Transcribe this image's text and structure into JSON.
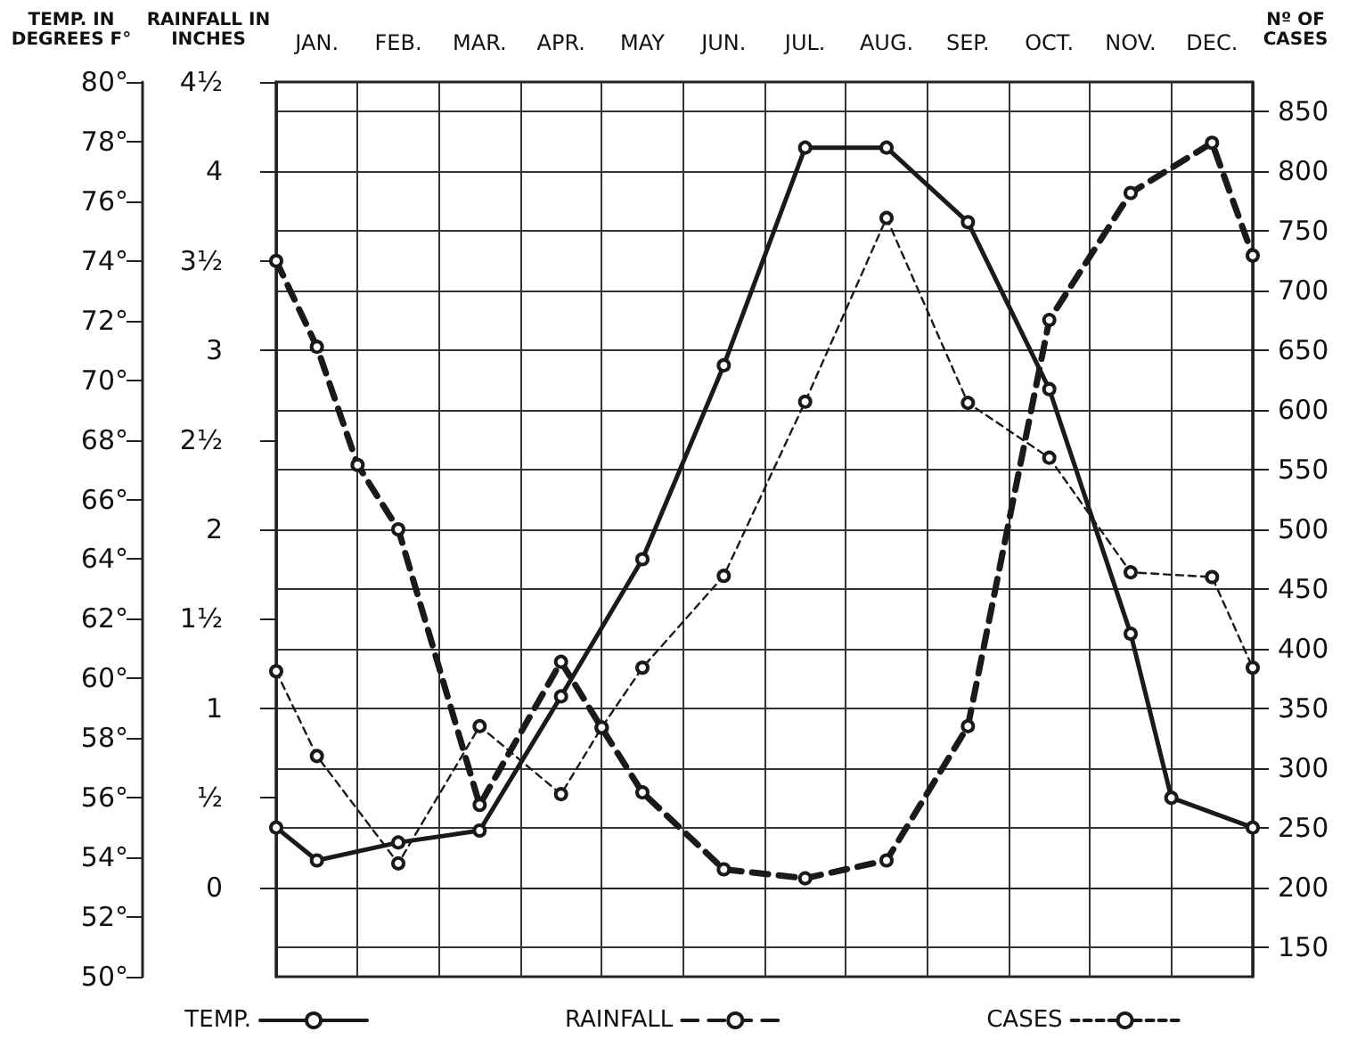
{
  "chart_data": {
    "type": "line",
    "ylabel": "TEMP. IN DEGREES F°",
    "y2label": "RAINFALL IN INCHES",
    "y3label": "Nº OF CASES",
    "categories": [
      null,
      "JAN.",
      null,
      "FEB.",
      null,
      "MAR.",
      null,
      "APR.",
      null,
      "MAY",
      null,
      "JUN.",
      null,
      "JUL.",
      null,
      "AUG.",
      null,
      "SEP.",
      null,
      "OCT.",
      null,
      "NOV.",
      null,
      "DEC.",
      null
    ],
    "series": [
      {
        "name": "TEMP.",
        "color": "#1a1a1a",
        "axis": "y",
        "line_style": "solid",
        "values": [
          55,
          53.9,
          null,
          54.5,
          null,
          54.9,
          null,
          59.4,
          null,
          64,
          null,
          70.5,
          null,
          77.8,
          null,
          77.8,
          null,
          75.3,
          null,
          69.7,
          null,
          61.5,
          56,
          null,
          55
        ]
      },
      {
        "name": "RAINFALL",
        "color": "#1a1a1a",
        "axis": "y2",
        "line_style": "dashed",
        "values": [
          3.5,
          3.02,
          2.36,
          2,
          null,
          0.46,
          null,
          1.26,
          0.89,
          0.53,
          null,
          0.1,
          null,
          0.05,
          null,
          0.15,
          null,
          0.9,
          null,
          3.17,
          null,
          3.88,
          null,
          4.16,
          3.53
        ]
      },
      {
        "name": "CASES",
        "color": "#1a1a1a",
        "axis": "y3",
        "line_style": "dotted",
        "values": [
          381,
          310,
          null,
          220,
          null,
          335,
          null,
          278,
          334,
          384,
          null,
          461,
          null,
          607,
          null,
          761,
          null,
          606,
          null,
          560,
          null,
          464,
          null,
          460,
          384
        ]
      }
    ],
    "ylim": [
      50,
      80
    ],
    "yticks": [
      {
        "value": 50,
        "label": "50°"
      },
      {
        "value": 52,
        "label": "52°"
      },
      {
        "value": 54,
        "label": "54°"
      },
      {
        "value": 56,
        "label": "56°"
      },
      {
        "value": 58,
        "label": "58°"
      },
      {
        "value": 60,
        "label": "60°"
      },
      {
        "value": 62,
        "label": "62°"
      },
      {
        "value": 64,
        "label": "64°"
      },
      {
        "value": 66,
        "label": "66°"
      },
      {
        "value": 68,
        "label": "68°"
      },
      {
        "value": 70,
        "label": "70°"
      },
      {
        "value": 72,
        "label": "72°"
      },
      {
        "value": 74,
        "label": "74°"
      },
      {
        "value": 76,
        "label": "76°"
      },
      {
        "value": 78,
        "label": "78°"
      },
      {
        "value": 80,
        "label": "80°"
      }
    ],
    "y2lim": [
      -0.5,
      4.5
    ],
    "y2ticks": [
      0,
      {
        "value": 0.5,
        "label": "½"
      },
      1,
      {
        "value": 1.5,
        "label": "1½"
      },
      2,
      {
        "value": 2.5,
        "label": "2½"
      },
      3,
      {
        "value": 3.5,
        "label": "3½"
      },
      4,
      {
        "value": 4.5,
        "label": "4½"
      }
    ],
    "y3lim": [
      125,
      875
    ],
    "y3ticks": [
      150,
      200,
      250,
      300,
      350,
      400,
      450,
      500,
      550,
      600,
      650,
      700,
      750,
      800,
      850
    ],
    "grid": true,
    "legend": "bottom",
    "marker": "circle"
  }
}
